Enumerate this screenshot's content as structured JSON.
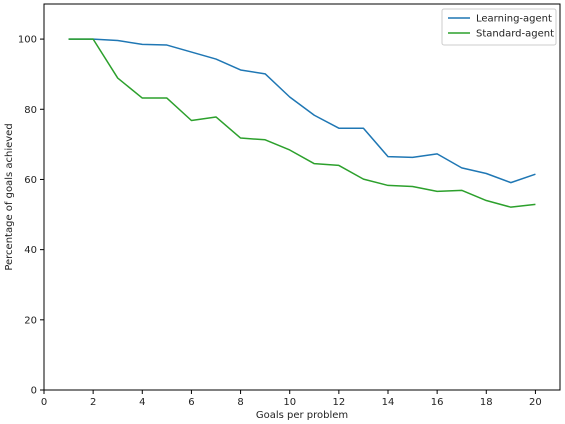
{
  "chart_data": {
    "type": "line",
    "title": "",
    "xlabel": "Goals per problem",
    "ylabel": "Percentage of goals achieved",
    "xlim": [
      0,
      21
    ],
    "ylim": [
      0,
      110
    ],
    "xticks": [
      0,
      2,
      4,
      6,
      8,
      10,
      12,
      14,
      16,
      18,
      20
    ],
    "yticks": [
      0,
      20,
      40,
      60,
      80,
      100
    ],
    "grid": false,
    "legend": "top-right",
    "x": [
      1,
      2,
      3,
      4,
      5,
      6,
      7,
      8,
      9,
      10,
      11,
      12,
      13,
      14,
      15,
      16,
      17,
      18,
      19,
      20
    ],
    "series": [
      {
        "name": "Learning-agent",
        "color": "#1f77b4",
        "values": [
          100,
          100,
          99.6,
          98.5,
          98.3,
          96.3,
          94.3,
          91.2,
          90.1,
          83.5,
          78.3,
          74.6,
          74.6,
          66.5,
          66.3,
          67.3,
          63.3,
          61.7,
          59.1,
          61.5
        ]
      },
      {
        "name": "Standard-agent",
        "color": "#2ca02c",
        "values": [
          100,
          100,
          88.9,
          83.2,
          83.2,
          76.8,
          77.8,
          71.8,
          71.3,
          68.4,
          64.5,
          64.0,
          60.1,
          58.3,
          58.0,
          56.6,
          56.9,
          54.0,
          52.1,
          52.9
        ]
      }
    ]
  }
}
